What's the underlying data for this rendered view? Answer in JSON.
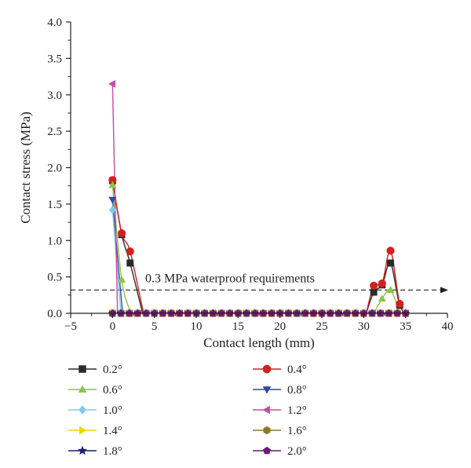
{
  "chart_data": {
    "type": "line",
    "title": "",
    "xlabel": "Contact length (mm)",
    "ylabel": "Contact stress (MPa)",
    "xlim": [
      -5,
      40
    ],
    "ylim": [
      0,
      4
    ],
    "xticks": [
      "−5",
      "0",
      "5",
      "10",
      "15",
      "20",
      "25",
      "30",
      "35",
      "40"
    ],
    "yticks": [
      "0.0",
      "0.5",
      "1.0",
      "1.5",
      "2.0",
      "2.5",
      "3.0",
      "3.5",
      "4.0"
    ],
    "grid": false,
    "legend_position": "bottom, two columns",
    "reference_line": {
      "y": 0.32,
      "label": "0.3 MPa waterproof requirements",
      "style": "dashed-arrow"
    },
    "series": [
      {
        "name": "0.2°",
        "color": "#2b2b2b",
        "marker": "square",
        "left": [
          [
            0,
            1.82
          ],
          [
            1.1,
            1.08
          ],
          [
            2.1,
            0.69
          ],
          [
            3.6,
            0
          ]
        ],
        "right": [
          [
            30.3,
            0
          ],
          [
            31.2,
            0.29
          ],
          [
            32.2,
            0.39
          ],
          [
            33.2,
            0.69
          ],
          [
            34.3,
            0.11
          ],
          [
            35.3,
            0
          ]
        ]
      },
      {
        "name": "0.4°",
        "color": "#d42020",
        "marker": "circle",
        "left": [
          [
            0,
            1.83
          ],
          [
            1.1,
            1.1
          ],
          [
            2.1,
            0.85
          ],
          [
            3.7,
            0
          ]
        ],
        "right": [
          [
            30.3,
            0
          ],
          [
            31.2,
            0.38
          ],
          [
            32.2,
            0.41
          ],
          [
            33.2,
            0.86
          ],
          [
            34.3,
            0.13
          ],
          [
            35.3,
            0
          ]
        ]
      },
      {
        "name": "0.6°",
        "color": "#8cc63f",
        "marker": "triangle-up",
        "left": [
          [
            0,
            1.76
          ],
          [
            1.1,
            0.46
          ],
          [
            2.2,
            0
          ]
        ],
        "right": [
          [
            31.2,
            0
          ],
          [
            32.2,
            0.2
          ],
          [
            33.2,
            0.32
          ],
          [
            34.3,
            0
          ]
        ]
      },
      {
        "name": "0.8°",
        "color": "#2e4da0",
        "marker": "triangle-down",
        "left": [
          [
            0,
            1.56
          ],
          [
            1.2,
            0
          ]
        ],
        "right": []
      },
      {
        "name": "1.0°",
        "color": "#7fcbea",
        "marker": "diamond",
        "left": [
          [
            0,
            1.42
          ],
          [
            1.0,
            0
          ]
        ],
        "right": []
      },
      {
        "name": "1.2°",
        "color": "#c24ca8",
        "marker": "triangle-left",
        "left": [
          [
            0,
            3.15
          ],
          [
            0.6,
            0
          ]
        ],
        "right": []
      },
      {
        "name": "1.4°",
        "color": "#e8d800",
        "marker": "triangle-right",
        "left": [],
        "right": []
      },
      {
        "name": "1.6°",
        "color": "#8a7a24",
        "marker": "hexagon",
        "left": [],
        "right": []
      },
      {
        "name": "1.8°",
        "color": "#1d1d6b",
        "marker": "star",
        "left": [],
        "right": []
      },
      {
        "name": "2.0°",
        "color": "#6a1a78",
        "marker": "pentagon",
        "left": [],
        "right": []
      }
    ],
    "baseline_points_x": [
      0,
      1,
      2,
      3,
      4,
      5,
      6,
      7,
      8,
      9,
      10,
      11,
      12,
      13,
      14,
      15,
      16,
      17,
      18,
      19,
      20,
      21,
      22,
      23,
      24,
      25,
      26,
      27,
      28,
      29,
      30,
      31,
      32,
      33,
      34,
      35
    ]
  }
}
